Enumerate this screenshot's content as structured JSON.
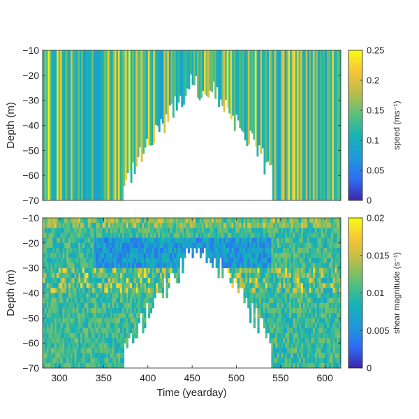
{
  "chart_data": [
    {
      "type": "heatmap",
      "ylabel": "Depth (m)",
      "xlim": [
        281,
        618
      ],
      "ylim": [
        -70,
        -10
      ],
      "y_ticks": [
        -10,
        -20,
        -30,
        -40,
        -50,
        -60,
        -70
      ],
      "x_ticks": [],
      "colorbar": {
        "label": "speed (ms⁻¹)",
        "range": [
          0,
          0.25
        ],
        "ticks": [
          0,
          0.05,
          0.1,
          0.15,
          0.2,
          0.25
        ],
        "tick_labels": [
          "0",
          "0.05",
          "0.1",
          "0.15",
          "0.2",
          "0.25"
        ]
      },
      "colormap": [
        "#3e26a8",
        "#2d6ef5",
        "#1d9ad7",
        "#17b3b5",
        "#5ac07a",
        "#b8bd4a",
        "#f5c438",
        "#f9fb15"
      ],
      "no_data_region": {
        "description": "white gaps at depth between yearday 370 and 540",
        "deepest_data_depth_m": -70
      }
    },
    {
      "type": "heatmap",
      "xlabel": "Time (yearday)",
      "ylabel": "Depth (m)",
      "xlim": [
        281,
        618
      ],
      "ylim": [
        -70,
        -10
      ],
      "x_ticks": [
        300,
        350,
        400,
        450,
        500,
        550,
        600
      ],
      "y_ticks": [
        -10,
        -20,
        -30,
        -40,
        -50,
        -60,
        -70
      ],
      "colorbar": {
        "label": "shear magnitude (s⁻¹)",
        "range": [
          0,
          0.02
        ],
        "ticks": [
          0,
          0.005,
          0.01,
          0.015,
          0.02
        ],
        "tick_labels": [
          "0",
          "0.005",
          "0.01",
          "0.015",
          "0.02"
        ]
      },
      "colormap": [
        "#3e26a8",
        "#2d6ef5",
        "#1d9ad7",
        "#17b3b5",
        "#5ac07a",
        "#b8bd4a",
        "#f5c438",
        "#f9fb15"
      ]
    }
  ]
}
